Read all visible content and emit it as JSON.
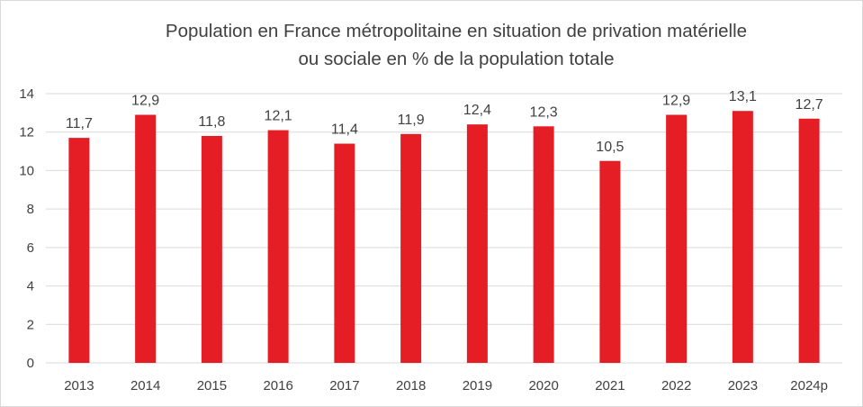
{
  "chart_data": {
    "type": "bar",
    "title_lines": [
      "Population en France métropolitaine en situation de privation matérielle",
      "ou sociale  en % de la population totale"
    ],
    "categories": [
      "2013",
      "2014",
      "2015",
      "2016",
      "2017",
      "2018",
      "2019",
      "2020",
      "2021",
      "2022",
      "2023",
      "2024p"
    ],
    "values": [
      11.7,
      12.9,
      11.8,
      12.1,
      11.4,
      11.9,
      12.4,
      12.3,
      10.5,
      12.9,
      13.1,
      12.7
    ],
    "data_labels": [
      "11,7",
      "12,9",
      "11,8",
      "12,1",
      "11,4",
      "11,9",
      "12,4",
      "12,3",
      "10,5",
      "12,9",
      "13,1",
      "12,7"
    ],
    "y_ticks": [
      0,
      2,
      4,
      6,
      8,
      10,
      12,
      14
    ],
    "y_tick_labels": [
      "0",
      "2",
      "4",
      "6",
      "8",
      "10",
      "12",
      "14"
    ],
    "ylim": [
      0,
      14
    ],
    "grid": true,
    "legend": "none",
    "bar_color": "#e51e25"
  }
}
